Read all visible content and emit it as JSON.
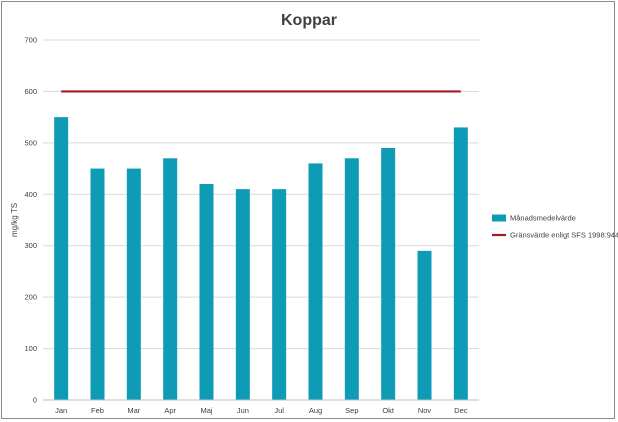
{
  "chart_data": {
    "type": "bar",
    "title": "Koppar",
    "xlabel": "",
    "ylabel": "mg/kg TS",
    "ylim": [
      0,
      700
    ],
    "yticks": [
      0,
      100,
      200,
      300,
      400,
      500,
      600,
      700
    ],
    "grid": true,
    "legend_position": "right",
    "categories": [
      "Jan",
      "Feb",
      "Mar",
      "Apr",
      "Maj",
      "Jun",
      "Jul",
      "Aug",
      "Sep",
      "Okt",
      "Nov",
      "Dec"
    ],
    "series": [
      {
        "name": "Månadsmedelvärde",
        "type": "bar",
        "color": "#0e9bb6",
        "values": [
          550,
          450,
          450,
          470,
          420,
          410,
          410,
          460,
          470,
          490,
          290,
          530
        ]
      },
      {
        "name": "Gränsvärde enligt SFS 1998:944",
        "type": "line",
        "color": "#a11d21",
        "values": [
          600,
          600,
          600,
          600,
          600,
          600,
          600,
          600,
          600,
          600,
          600,
          600
        ]
      }
    ]
  }
}
